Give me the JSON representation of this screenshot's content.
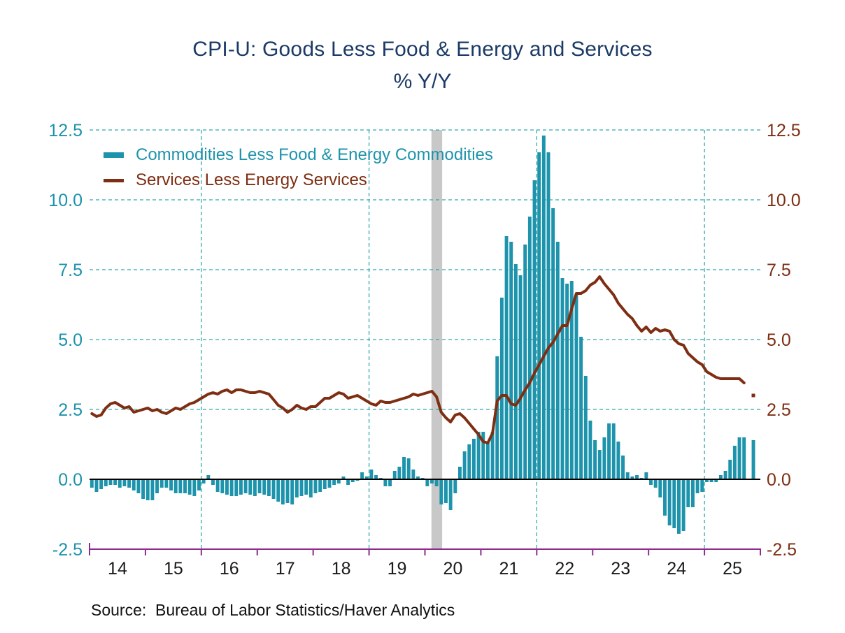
{
  "page": {
    "title": "CPI-U: Goods Less Food & Energy and Services",
    "subtitle": "% Y/Y",
    "source": "Source:  Bureau of Labor Statistics/Haver Analytics"
  },
  "colors": {
    "title_text": "#1B3A66",
    "bars": "#1D93AC",
    "line": "#7E2E12",
    "gridline": "#33A9AD",
    "axis": "#8F2A8F",
    "zero_line": "#000000",
    "recession_band": "#C8C8C8",
    "x_label_text": "#1A1A1A"
  },
  "chart_data": {
    "type": "combo",
    "title": "CPI-U: Goods Less Food & Energy and Services",
    "y_units": "% Y/Y",
    "frequency": "monthly",
    "x_start": "2014-01",
    "x_end": "2025-11",
    "ylim": [
      -2.5,
      12.5
    ],
    "yticks": [
      12.5,
      10.0,
      7.5,
      5.0,
      2.5,
      0.0,
      -2.5
    ],
    "x_tick_labels": [
      "14",
      "15",
      "16",
      "17",
      "18",
      "19",
      "20",
      "21",
      "22",
      "23",
      "24",
      "25"
    ],
    "vertical_gridline_month_indices": [
      24,
      60,
      96,
      132
    ],
    "recession_band": {
      "start": "2020-02",
      "end": "2020-04",
      "start_index": 73.4,
      "end_index": 75.7
    },
    "grid": "dashed",
    "legend_position": "top-left-inside",
    "series": [
      {
        "name": "Commodities Less Food & Energy Commodities",
        "type": "bar",
        "color": "#1D93AC",
        "values": [
          -0.3,
          -0.45,
          -0.35,
          -0.25,
          -0.2,
          -0.2,
          -0.3,
          -0.25,
          -0.3,
          -0.4,
          -0.5,
          -0.7,
          -0.75,
          -0.75,
          -0.5,
          -0.3,
          -0.3,
          -0.4,
          -0.5,
          -0.5,
          -0.5,
          -0.55,
          -0.6,
          -0.4,
          -0.15,
          0.15,
          -0.2,
          -0.45,
          -0.5,
          -0.55,
          -0.6,
          -0.6,
          -0.55,
          -0.5,
          -0.55,
          -0.6,
          -0.5,
          -0.55,
          -0.6,
          -0.7,
          -0.8,
          -0.9,
          -0.85,
          -0.9,
          -0.65,
          -0.6,
          -0.55,
          -0.65,
          -0.5,
          -0.45,
          -0.35,
          -0.3,
          -0.2,
          -0.15,
          0.1,
          -0.2,
          -0.1,
          -0.05,
          0.25,
          0.1,
          0.35,
          0.15,
          0.05,
          -0.25,
          -0.25,
          0.3,
          0.45,
          0.8,
          0.75,
          0.35,
          0.1,
          0.05,
          -0.25,
          -0.15,
          -0.25,
          -0.9,
          -0.85,
          -1.1,
          -0.5,
          0.45,
          1.0,
          1.25,
          1.45,
          1.7,
          1.7,
          1.3,
          1.7,
          4.4,
          6.5,
          8.7,
          8.5,
          7.7,
          7.3,
          8.4,
          9.4,
          10.7,
          11.7,
          12.3,
          11.7,
          9.7,
          8.5,
          7.2,
          7.0,
          7.1,
          6.6,
          5.1,
          3.7,
          2.1,
          1.4,
          1.05,
          1.5,
          2.0,
          2.0,
          1.35,
          0.85,
          0.25,
          0.1,
          0.15,
          0.05,
          0.25,
          -0.2,
          -0.3,
          -0.65,
          -1.3,
          -1.65,
          -1.75,
          -1.95,
          -1.85,
          -1.0,
          -1.0,
          -0.5,
          -0.45,
          -0.1,
          -0.1,
          -0.1,
          0.15,
          0.3,
          0.7,
          1.2,
          1.5,
          1.5,
          null,
          1.4
        ]
      },
      {
        "name": "Services Less Energy Services",
        "type": "line",
        "color": "#7E2E12",
        "detached_last_point": true,
        "values": [
          2.35,
          2.25,
          2.3,
          2.55,
          2.7,
          2.75,
          2.65,
          2.55,
          2.6,
          2.4,
          2.45,
          2.5,
          2.55,
          2.45,
          2.5,
          2.4,
          2.35,
          2.45,
          2.55,
          2.5,
          2.6,
          2.7,
          2.75,
          2.85,
          2.95,
          3.05,
          3.1,
          3.05,
          3.15,
          3.2,
          3.1,
          3.2,
          3.2,
          3.15,
          3.1,
          3.1,
          3.15,
          3.1,
          3.05,
          2.85,
          2.65,
          2.55,
          2.4,
          2.5,
          2.65,
          2.55,
          2.5,
          2.6,
          2.6,
          2.75,
          2.9,
          2.9,
          3.0,
          3.1,
          3.05,
          2.9,
          2.95,
          3.0,
          2.9,
          2.8,
          2.7,
          2.65,
          2.8,
          2.75,
          2.75,
          2.8,
          2.85,
          2.9,
          2.95,
          3.05,
          3.0,
          3.05,
          3.1,
          3.15,
          2.95,
          2.4,
          2.2,
          2.05,
          2.3,
          2.35,
          2.2,
          2.0,
          1.8,
          1.6,
          1.35,
          1.3,
          1.65,
          2.8,
          3.0,
          3.0,
          2.7,
          2.65,
          2.9,
          3.2,
          3.45,
          3.8,
          4.1,
          4.4,
          4.7,
          4.9,
          5.2,
          5.5,
          5.5,
          6.1,
          6.65,
          6.65,
          6.75,
          6.95,
          7.05,
          7.25,
          7.0,
          6.8,
          6.6,
          6.3,
          6.1,
          5.9,
          5.75,
          5.5,
          5.3,
          5.45,
          5.25,
          5.4,
          5.3,
          5.35,
          5.3,
          5.0,
          4.85,
          4.8,
          4.5,
          4.35,
          4.2,
          4.1,
          3.85,
          3.75,
          3.65,
          3.6,
          3.6,
          3.6,
          3.6,
          3.6,
          3.45,
          null,
          3.0
        ]
      }
    ]
  }
}
